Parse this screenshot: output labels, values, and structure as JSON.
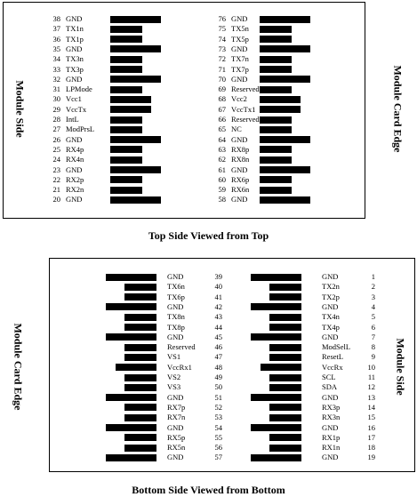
{
  "top": {
    "left_label": "Module Side",
    "right_label": "Module Card Edge",
    "caption": "Top Side Viewed from Top",
    "left_column": [
      {
        "pin": "38",
        "name": "GND",
        "bar": "long"
      },
      {
        "pin": "37",
        "name": "TX1n",
        "bar": "short"
      },
      {
        "pin": "36",
        "name": "TX1p",
        "bar": "short"
      },
      {
        "pin": "35",
        "name": "GND",
        "bar": "long"
      },
      {
        "pin": "34",
        "name": "TX3n",
        "bar": "short"
      },
      {
        "pin": "33",
        "name": "TX3p",
        "bar": "short"
      },
      {
        "pin": "32",
        "name": "GND",
        "bar": "long"
      },
      {
        "pin": "31",
        "name": "LPMode",
        "bar": "short"
      },
      {
        "pin": "30",
        "name": "Vcc1",
        "bar": "mid"
      },
      {
        "pin": "29",
        "name": "VccTx",
        "bar": "mid"
      },
      {
        "pin": "28",
        "name": "IntL",
        "bar": "short"
      },
      {
        "pin": "27",
        "name": "ModPrsL",
        "bar": "short"
      },
      {
        "pin": "26",
        "name": "GND",
        "bar": "long"
      },
      {
        "pin": "25",
        "name": "RX4p",
        "bar": "short"
      },
      {
        "pin": "24",
        "name": "RX4n",
        "bar": "short"
      },
      {
        "pin": "23",
        "name": "GND",
        "bar": "long"
      },
      {
        "pin": "22",
        "name": "RX2p",
        "bar": "short"
      },
      {
        "pin": "21",
        "name": "RX2n",
        "bar": "short"
      },
      {
        "pin": "20",
        "name": "GND",
        "bar": "long"
      }
    ],
    "right_column": [
      {
        "pin": "76",
        "name": "GND",
        "bar": "long"
      },
      {
        "pin": "75",
        "name": "TX5n",
        "bar": "short"
      },
      {
        "pin": "74",
        "name": "TX5p",
        "bar": "short"
      },
      {
        "pin": "73",
        "name": "GND",
        "bar": "long"
      },
      {
        "pin": "72",
        "name": "TX7n",
        "bar": "short"
      },
      {
        "pin": "71",
        "name": "TX7p",
        "bar": "short"
      },
      {
        "pin": "70",
        "name": "GND",
        "bar": "long"
      },
      {
        "pin": "69",
        "name": "Reserved",
        "bar": "short"
      },
      {
        "pin": "68",
        "name": "Vcc2",
        "bar": "mid"
      },
      {
        "pin": "67",
        "name": "VccTx1",
        "bar": "mid"
      },
      {
        "pin": "66",
        "name": "Reserved",
        "bar": "short"
      },
      {
        "pin": "65",
        "name": "NC",
        "bar": "short"
      },
      {
        "pin": "64",
        "name": "GND",
        "bar": "long"
      },
      {
        "pin": "63",
        "name": "RX8p",
        "bar": "short"
      },
      {
        "pin": "62",
        "name": "RX8n",
        "bar": "short"
      },
      {
        "pin": "61",
        "name": "GND",
        "bar": "long"
      },
      {
        "pin": "60",
        "name": "RX6p",
        "bar": "short"
      },
      {
        "pin": "59",
        "name": "RX6n",
        "bar": "short"
      },
      {
        "pin": "58",
        "name": "GND",
        "bar": "long"
      }
    ]
  },
  "bottom": {
    "left_label": "Module Card Edge",
    "right_label": "Module Side",
    "caption": "Bottom Side Viewed from Bottom",
    "left_column": [
      {
        "pin": "39",
        "name": "GND",
        "bar": "long"
      },
      {
        "pin": "40",
        "name": "TX6n",
        "bar": "short"
      },
      {
        "pin": "41",
        "name": "TX6p",
        "bar": "short"
      },
      {
        "pin": "42",
        "name": "GND",
        "bar": "long"
      },
      {
        "pin": "43",
        "name": "TX8n",
        "bar": "short"
      },
      {
        "pin": "44",
        "name": "TX8p",
        "bar": "short"
      },
      {
        "pin": "45",
        "name": "GND",
        "bar": "long"
      },
      {
        "pin": "46",
        "name": "Reserved",
        "bar": "short"
      },
      {
        "pin": "47",
        "name": "VS1",
        "bar": "short"
      },
      {
        "pin": "48",
        "name": "VccRx1",
        "bar": "mid"
      },
      {
        "pin": "49",
        "name": "VS2",
        "bar": "short"
      },
      {
        "pin": "50",
        "name": "VS3",
        "bar": "short"
      },
      {
        "pin": "51",
        "name": "GND",
        "bar": "long"
      },
      {
        "pin": "52",
        "name": "RX7p",
        "bar": "short"
      },
      {
        "pin": "53",
        "name": "RX7n",
        "bar": "short"
      },
      {
        "pin": "54",
        "name": "GND",
        "bar": "long"
      },
      {
        "pin": "55",
        "name": "RX5p",
        "bar": "short"
      },
      {
        "pin": "56",
        "name": "RX5n",
        "bar": "short"
      },
      {
        "pin": "57",
        "name": "GND",
        "bar": "long"
      }
    ],
    "right_column": [
      {
        "pin": "1",
        "name": "GND",
        "bar": "long"
      },
      {
        "pin": "2",
        "name": "TX2n",
        "bar": "short"
      },
      {
        "pin": "3",
        "name": "TX2p",
        "bar": "short"
      },
      {
        "pin": "4",
        "name": "GND",
        "bar": "long"
      },
      {
        "pin": "5",
        "name": "TX4n",
        "bar": "short"
      },
      {
        "pin": "6",
        "name": "TX4p",
        "bar": "short"
      },
      {
        "pin": "7",
        "name": "GND",
        "bar": "long"
      },
      {
        "pin": "8",
        "name": "ModSelL",
        "bar": "short"
      },
      {
        "pin": "9",
        "name": "ResetL",
        "bar": "short"
      },
      {
        "pin": "10",
        "name": "VccRx",
        "bar": "mid"
      },
      {
        "pin": "11",
        "name": "SCL",
        "bar": "short"
      },
      {
        "pin": "12",
        "name": "SDA",
        "bar": "short"
      },
      {
        "pin": "13",
        "name": "GND",
        "bar": "long"
      },
      {
        "pin": "14",
        "name": "RX3p",
        "bar": "short"
      },
      {
        "pin": "15",
        "name": "RX3n",
        "bar": "short"
      },
      {
        "pin": "16",
        "name": "GND",
        "bar": "long"
      },
      {
        "pin": "17",
        "name": "RX1p",
        "bar": "short"
      },
      {
        "pin": "18",
        "name": "RX1n",
        "bar": "short"
      },
      {
        "pin": "19",
        "name": "GND",
        "bar": "long"
      }
    ]
  }
}
